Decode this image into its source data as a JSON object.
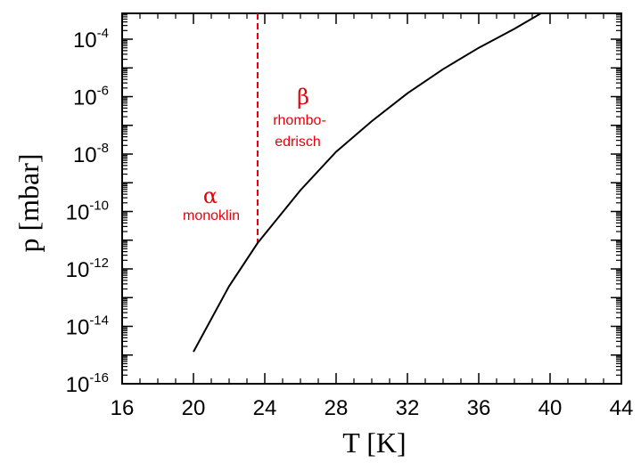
{
  "chart_data": {
    "type": "line",
    "xlabel": "T [K]",
    "ylabel": "p [mbar]",
    "xlim": [
      16,
      44
    ],
    "ylim_log10": [
      -16,
      -3.1
    ],
    "yscale": "log",
    "grid": false,
    "x_ticks": [
      "16",
      "20",
      "24",
      "28",
      "32",
      "36",
      "40",
      "44"
    ],
    "y_ticks": [
      {
        "base": "10",
        "exp": "-16",
        "log": -16
      },
      {
        "base": "10",
        "exp": "-14",
        "log": -14
      },
      {
        "base": "10",
        "exp": "-12",
        "log": -12
      },
      {
        "base": "10",
        "exp": "-10",
        "log": -10
      },
      {
        "base": "10",
        "exp": "-8",
        "log": -8
      },
      {
        "base": "10",
        "exp": "-6",
        "log": -6
      },
      {
        "base": "10",
        "exp": "-4",
        "log": -4
      }
    ],
    "series": [
      {
        "color": "#000000",
        "points": [
          {
            "x": 20.0,
            "p": "1.3e-15"
          },
          {
            "x": 22.0,
            "p": "2.5e-13"
          },
          {
            "x": 23.6,
            "p": "8.0e-12"
          },
          {
            "x": 26.0,
            "p": "5.5e-10"
          },
          {
            "x": 28.0,
            "p": "1.2e-8"
          },
          {
            "x": 30.0,
            "p": "1.4e-7"
          },
          {
            "x": 32.0,
            "p": "1.3e-6"
          },
          {
            "x": 34.0,
            "p": "9.0e-6"
          },
          {
            "x": 36.0,
            "p": "5.0e-5"
          },
          {
            "x": 38.0,
            "p": "2.3e-4"
          },
          {
            "x": 39.5,
            "p": "8.0e-4"
          }
        ]
      }
    ],
    "phase_boundary": {
      "x": 23.6,
      "style": "dashed",
      "color": "#e8000b"
    },
    "annotations": [
      {
        "name": "alpha-symbol",
        "text": "α",
        "color": "#e8000b"
      },
      {
        "name": "alpha-label",
        "text": "monoklin",
        "color": "#e8000b"
      },
      {
        "name": "beta-symbol",
        "text": "β",
        "color": "#e8000b"
      },
      {
        "name": "beta-label-line1",
        "text": "rhombo-",
        "color": "#e8000b"
      },
      {
        "name": "beta-label-line2",
        "text": "edrisch",
        "color": "#e8000b"
      }
    ]
  }
}
